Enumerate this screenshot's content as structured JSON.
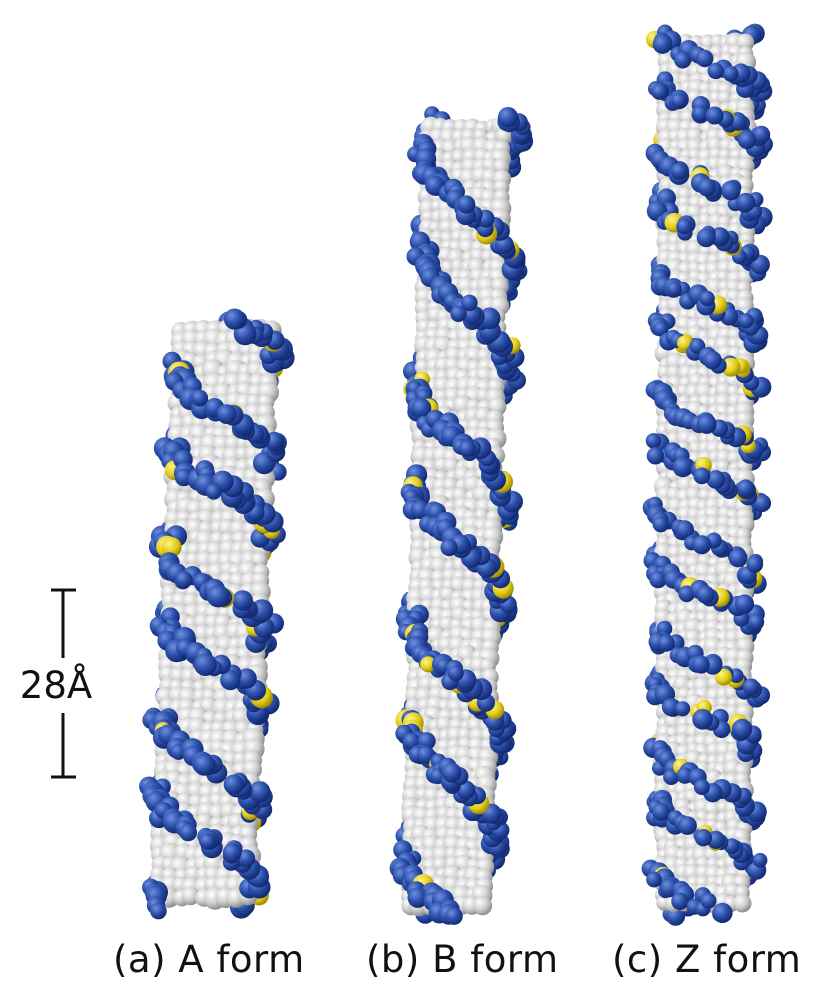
{
  "scale_bar": {
    "label": "28Å"
  },
  "panels": [
    {
      "id": "a",
      "caption": "(a) A form"
    },
    {
      "id": "b",
      "caption": "(b) B form"
    },
    {
      "id": "c",
      "caption": "(c) Z form"
    }
  ],
  "colors": {
    "backbone_blue": "#2a4ea8",
    "backbone_dark": "#1a3585",
    "base_gray": "#d2d2d2",
    "phosphorus_yellow": "#e2cc1a",
    "background": "#ffffff"
  }
}
